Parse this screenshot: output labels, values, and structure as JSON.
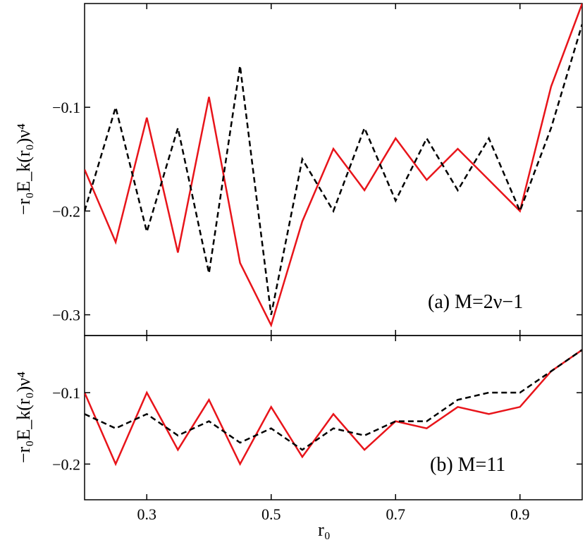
{
  "chart_data": [
    {
      "type": "line",
      "panel": "top",
      "annotation": "(a) M=2ν−1",
      "ylabel": "−r₀E_k(r₀)ν⁴",
      "xlim": [
        0.2,
        1.0
      ],
      "ylim": [
        -0.32,
        0.0
      ],
      "yticks": [
        -0.1,
        -0.2,
        -0.3
      ],
      "ytick_labels": [
        "−0.1",
        "−0.2",
        "−0.3"
      ],
      "series": [
        {
          "style": "solid",
          "color": "#e8141a",
          "x": [
            0.2,
            0.25,
            0.3,
            0.35,
            0.4,
            0.45,
            0.5,
            0.55,
            0.6,
            0.65,
            0.7,
            0.75,
            0.8,
            0.85,
            0.9,
            0.95,
            1.0
          ],
          "y": [
            -0.16,
            -0.23,
            -0.11,
            -0.24,
            -0.09,
            -0.25,
            -0.31,
            -0.21,
            -0.14,
            -0.18,
            -0.13,
            -0.17,
            -0.14,
            -0.17,
            -0.2,
            -0.08,
            0.0
          ]
        },
        {
          "style": "dashed",
          "color": "#000000",
          "x": [
            0.2,
            0.25,
            0.3,
            0.35,
            0.4,
            0.45,
            0.5,
            0.55,
            0.6,
            0.65,
            0.7,
            0.75,
            0.8,
            0.85,
            0.9,
            0.95,
            1.0
          ],
          "y": [
            -0.2,
            -0.1,
            -0.22,
            -0.12,
            -0.26,
            -0.06,
            -0.3,
            -0.15,
            -0.2,
            -0.12,
            -0.19,
            -0.13,
            -0.18,
            -0.13,
            -0.2,
            -0.12,
            -0.02
          ]
        }
      ]
    },
    {
      "type": "line",
      "panel": "bottom",
      "annotation": "(b) M=11",
      "ylabel": "−r₀E_k(r₀)ν⁴",
      "xlabel": "r₀",
      "xlim": [
        0.2,
        1.0
      ],
      "ylim": [
        -0.25,
        -0.02
      ],
      "xticks": [
        0.3,
        0.5,
        0.7,
        0.9
      ],
      "xtick_labels": [
        "0.3",
        "0.5",
        "0.7",
        "0.9"
      ],
      "yticks": [
        -0.1,
        -0.2
      ],
      "ytick_labels": [
        "−0.1",
        "−0.2"
      ],
      "series": [
        {
          "style": "solid",
          "color": "#e8141a",
          "x": [
            0.2,
            0.25,
            0.3,
            0.35,
            0.4,
            0.45,
            0.5,
            0.55,
            0.6,
            0.65,
            0.7,
            0.75,
            0.8,
            0.85,
            0.9,
            0.95,
            1.0
          ],
          "y": [
            -0.1,
            -0.2,
            -0.1,
            -0.18,
            -0.11,
            -0.2,
            -0.12,
            -0.19,
            -0.13,
            -0.18,
            -0.14,
            -0.15,
            -0.12,
            -0.13,
            -0.12,
            -0.07,
            -0.04
          ]
        },
        {
          "style": "dashed",
          "color": "#000000",
          "x": [
            0.2,
            0.25,
            0.3,
            0.35,
            0.4,
            0.45,
            0.5,
            0.55,
            0.6,
            0.65,
            0.7,
            0.75,
            0.8,
            0.85,
            0.9,
            0.95,
            1.0
          ],
          "y": [
            -0.13,
            -0.15,
            -0.13,
            -0.16,
            -0.14,
            -0.17,
            -0.15,
            -0.18,
            -0.15,
            -0.16,
            -0.14,
            -0.14,
            -0.11,
            -0.1,
            -0.1,
            -0.07,
            -0.04
          ]
        }
      ]
    }
  ]
}
